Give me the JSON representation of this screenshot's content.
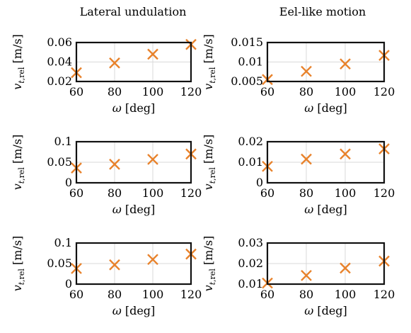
{
  "column_titles": [
    "Lateral undulation",
    "Eel-like motion"
  ],
  "chart_data": [
    {
      "type": "scatter",
      "panel": "row1-col1",
      "xlabel": "ω [deg]",
      "ylabel": "v_t,rel [m/s]",
      "x": [
        60,
        80,
        100,
        120
      ],
      "y": [
        0.029,
        0.039,
        0.048,
        0.058
      ],
      "xlim": [
        60,
        120
      ],
      "ylim": [
        0.02,
        0.06
      ],
      "xticks": [
        "60",
        "80",
        "100",
        "120"
      ],
      "yticks": [
        "0.02",
        "0.04",
        "0.06"
      ],
      "ytick_values": [
        0.02,
        0.04,
        0.06
      ],
      "color": "#e8822b",
      "marker": "x",
      "grid": true
    },
    {
      "type": "scatter",
      "panel": "row1-col2",
      "xlabel": "ω [deg]",
      "ylabel": "v_t,rel [m/s]",
      "x": [
        60,
        80,
        100,
        120
      ],
      "y": [
        0.0055,
        0.0076,
        0.0095,
        0.0117
      ],
      "xlim": [
        60,
        120
      ],
      "ylim": [
        0.005,
        0.015
      ],
      "xticks": [
        "60",
        "80",
        "100",
        "120"
      ],
      "yticks": [
        "0.005",
        "0.01",
        "0.015"
      ],
      "ytick_values": [
        0.005,
        0.01,
        0.015
      ],
      "color": "#e8822b",
      "marker": "x",
      "grid": true
    },
    {
      "type": "scatter",
      "panel": "row2-col1",
      "xlabel": "ω [deg]",
      "ylabel": "v_t,rel [m/s]",
      "x": [
        60,
        80,
        100,
        120
      ],
      "y": [
        0.036,
        0.045,
        0.057,
        0.07
      ],
      "xlim": [
        60,
        120
      ],
      "ylim": [
        0,
        0.1
      ],
      "xticks": [
        "60",
        "80",
        "100",
        "120"
      ],
      "yticks": [
        "0",
        "0.05",
        "0.1"
      ],
      "ytick_values": [
        0,
        0.05,
        0.1
      ],
      "color": "#e8822b",
      "marker": "x",
      "grid": true
    },
    {
      "type": "scatter",
      "panel": "row2-col2",
      "xlabel": "ω [deg]",
      "ylabel": "v_t,rel [m/s]",
      "x": [
        60,
        80,
        100,
        120
      ],
      "y": [
        0.008,
        0.0115,
        0.014,
        0.0165
      ],
      "xlim": [
        60,
        120
      ],
      "ylim": [
        0,
        0.02
      ],
      "xticks": [
        "60",
        "80",
        "100",
        "120"
      ],
      "yticks": [
        "0",
        "0.01",
        "0.02"
      ],
      "ytick_values": [
        0,
        0.01,
        0.02
      ],
      "color": "#e8822b",
      "marker": "x",
      "grid": true
    },
    {
      "type": "scatter",
      "panel": "row3-col1",
      "xlabel": "ω [deg]",
      "ylabel": "v_t,rel [m/s]",
      "x": [
        60,
        80,
        100,
        120
      ],
      "y": [
        0.038,
        0.047,
        0.06,
        0.073
      ],
      "xlim": [
        60,
        120
      ],
      "ylim": [
        0,
        0.1
      ],
      "xticks": [
        "60",
        "80",
        "100",
        "120"
      ],
      "yticks": [
        "0",
        "0.05",
        "0.1"
      ],
      "ytick_values": [
        0,
        0.05,
        0.1
      ],
      "color": "#e8822b",
      "marker": "x",
      "grid": true
    },
    {
      "type": "scatter",
      "panel": "row3-col2",
      "xlabel": "ω [deg]",
      "ylabel": "v_t,rel [m/s]",
      "x": [
        60,
        80,
        100,
        120
      ],
      "y": [
        0.0105,
        0.0142,
        0.0178,
        0.0212
      ],
      "xlim": [
        60,
        120
      ],
      "ylim": [
        0.01,
        0.03
      ],
      "xticks": [
        "60",
        "80",
        "100",
        "120"
      ],
      "yticks": [
        "0.01",
        "0.02",
        "0.03"
      ],
      "ytick_values": [
        0.01,
        0.02,
        0.03
      ],
      "color": "#e8822b",
      "marker": "x",
      "grid": true
    }
  ]
}
